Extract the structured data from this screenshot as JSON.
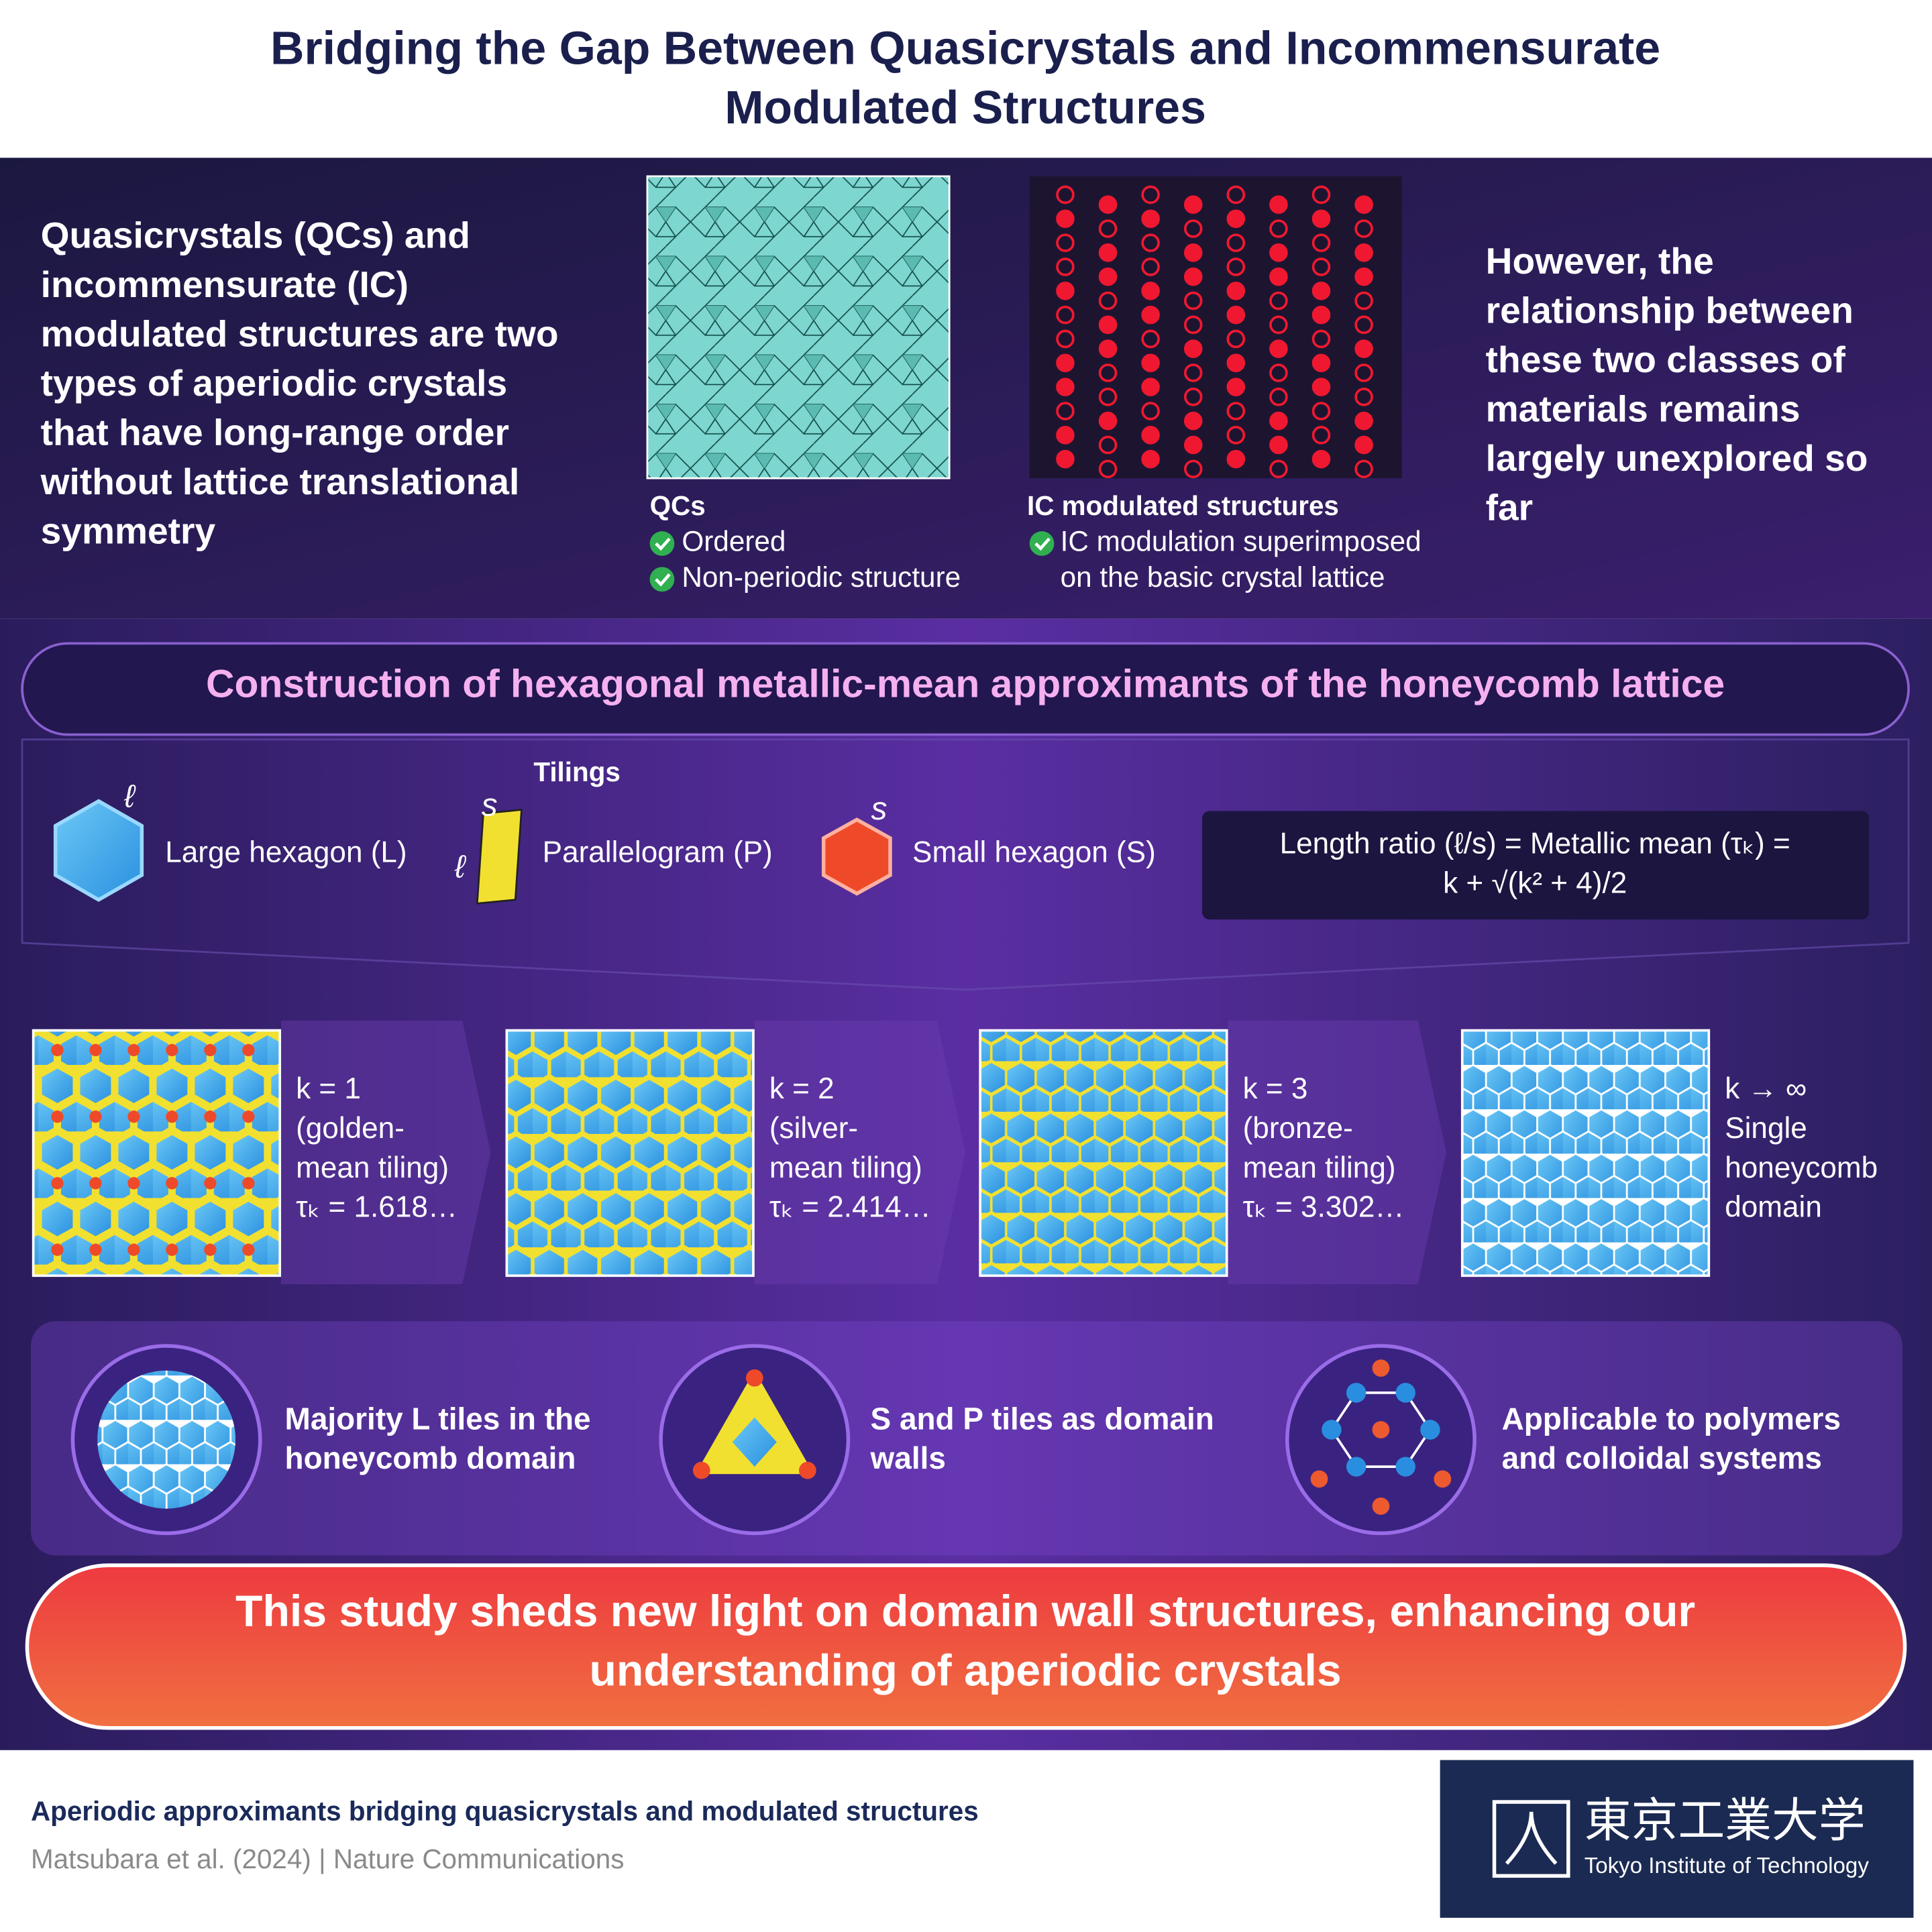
{
  "header": {
    "title_lines": [
      "Bridging the Gap Between Quasicrystals and Incommensurate",
      "Modulated Structures"
    ]
  },
  "intro": {
    "lines": [
      "Quasicrystals (QCs) and",
      "incommensurate (IC)",
      "modulated structures are two",
      "types of aperiodic crystals",
      "that have long-range order",
      "without lattice translational",
      "symmetry"
    ]
  },
  "qcs": {
    "label": "QCs",
    "points": [
      "Ordered",
      "Non-periodic structure"
    ]
  },
  "ic": {
    "label": "IC modulated structures",
    "point_lines": [
      "IC modulation superimposed",
      "on the basic crystal lattice"
    ]
  },
  "however": {
    "lines": [
      "However, the",
      "relationship between",
      "these two classes of",
      "materials remains",
      "largely unexplored so",
      "far"
    ]
  },
  "construction": {
    "title": "Construction of hexagonal metallic-mean approximants of the honeycomb lattice",
    "tilings_label": "Tilings",
    "tiles": [
      {
        "name": "Large hexagon (L)",
        "edges": [
          "ℓ"
        ]
      },
      {
        "name": "Parallelogram (P)",
        "edges": [
          "s",
          "ℓ"
        ]
      },
      {
        "name": "Small hexagon (S)",
        "edges": [
          "s"
        ]
      }
    ],
    "formula_lines": [
      "Length ratio (ℓ/s) = Metallic mean (τₖ) =",
      "k + √(k² + 4)/2"
    ]
  },
  "approximants": [
    {
      "lines": [
        "k = 1",
        "(golden-",
        "mean tiling)",
        "τₖ = 1.618…"
      ]
    },
    {
      "lines": [
        "k = 2",
        "(silver-",
        "mean tiling)",
        "τₖ = 2.414…"
      ]
    },
    {
      "lines": [
        "k = 3",
        "(bronze-",
        "mean tiling)",
        "τₖ = 3.302…"
      ]
    },
    {
      "lines": [
        "k → ∞",
        "Single",
        "honeycomb",
        "domain"
      ]
    }
  ],
  "findings": [
    {
      "lines": [
        "Majority L tiles in the",
        "honeycomb domain"
      ]
    },
    {
      "lines": [
        "S and P tiles as domain",
        "walls"
      ]
    },
    {
      "lines": [
        "Applicable to polymers",
        "and colloidal systems"
      ]
    }
  ],
  "conclusion": {
    "lines": [
      "This study sheds new light on domain wall structures, enhancing our",
      "understanding of aperiodic crystals"
    ]
  },
  "footer": {
    "title": "Aperiodic approximants bridging quasicrystals and modulated structures",
    "citation": "Matsubara et al. (2024) | Nature Communications",
    "logo_jp": "東京工業大学",
    "logo_en": "Tokyo Institute of Technology"
  }
}
